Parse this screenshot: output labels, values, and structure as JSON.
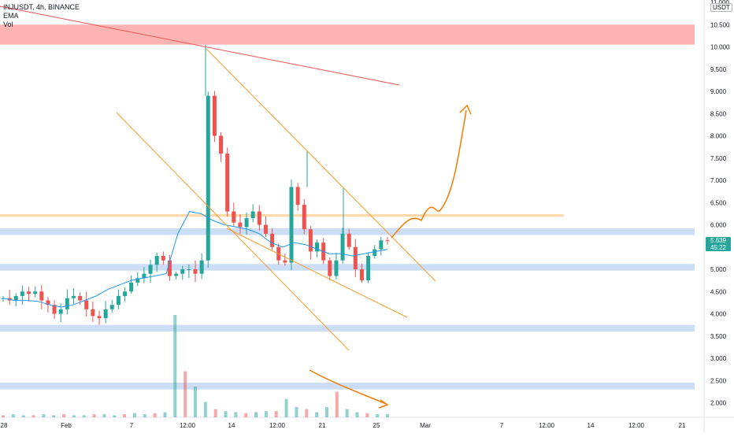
{
  "header": {
    "symbol_line": "INJUSDT, 4h, BINANCE",
    "indicators": [
      "EMA",
      "Vol"
    ],
    "currency": "USDT"
  },
  "last_price": {
    "value": "5.639",
    "countdown": "45:22"
  },
  "chart_data": {
    "type": "candlestick",
    "title": "",
    "xlabel": "",
    "ylabel": "",
    "ylim": [
      1.5,
      11.0
    ],
    "price_ticks": [
      "11.000",
      "10.500",
      "10.000",
      "9.500",
      "9.000",
      "8.500",
      "8.000",
      "7.500",
      "7.000",
      "6.500",
      "6.000",
      "5.500",
      "5.000",
      "4.500",
      "4.000",
      "3.500",
      "3.000",
      "2.500",
      "2.000"
    ],
    "time_ticks": [
      "28",
      "Feb",
      "7",
      "12:00",
      "14",
      "12:00",
      "21",
      "25",
      "Mar",
      "7",
      "12:00",
      "14",
      "12:00",
      "21"
    ],
    "ohlc_series_approx": [
      4.35,
      4.3,
      4.4,
      4.5,
      4.45,
      4.5,
      4.3,
      4.2,
      4.0,
      4.1,
      4.35,
      4.4,
      4.3,
      4.1,
      3.95,
      3.9,
      4.1,
      4.2,
      4.4,
      4.5,
      4.7,
      4.8,
      4.9,
      5.1,
      5.3,
      5.2,
      4.85,
      4.9,
      5.0,
      5.0,
      4.9,
      5.2,
      8.9,
      8.0,
      7.6,
      6.3,
      6.05,
      5.95,
      6.15,
      6.3,
      6.0,
      5.8,
      5.5,
      5.2,
      5.15,
      6.85,
      6.45,
      5.9,
      5.4,
      5.6,
      5.2,
      4.85,
      5.2,
      5.8,
      5.5,
      5.0,
      4.75,
      5.3,
      5.45,
      5.65,
      5.64
    ],
    "ema_series_approx": [
      4.35,
      4.3,
      4.3,
      4.28,
      4.2,
      4.15,
      4.2,
      4.3,
      4.4,
      4.55,
      4.65,
      4.75,
      4.8,
      4.85,
      4.9,
      5.8,
      6.3,
      6.25,
      6.1,
      6.0,
      5.95,
      5.9,
      5.8,
      5.6,
      5.5,
      5.6,
      5.55,
      5.45,
      5.35,
      5.35,
      5.3,
      5.35,
      5.4,
      5.45
    ],
    "volume_series_approx": [
      0.02,
      0.03,
      0.02,
      0.02,
      0.03,
      0.02,
      0.03,
      0.02,
      0.02,
      0.03,
      0.03,
      0.02,
      0.03,
      0.04,
      0.03,
      0.04,
      0.05,
      1.0,
      0.45,
      0.3,
      0.15,
      0.08,
      0.06,
      0.05,
      0.04,
      0.05,
      0.06,
      0.06,
      0.18,
      0.1,
      0.08,
      0.05,
      0.1,
      0.25,
      0.08,
      0.05,
      0.04,
      0.03,
      0.03
    ],
    "horizontal_zones": [
      {
        "low": 10.05,
        "high": 10.5,
        "color": "#ff9b9b"
      },
      {
        "low": 6.18,
        "high": 6.24,
        "color": "#ffd8a8"
      },
      {
        "low": 5.77,
        "high": 5.92,
        "color": "#c8dcf5"
      },
      {
        "low": 4.97,
        "high": 5.12,
        "color": "#c8dcf5"
      },
      {
        "low": 3.6,
        "high": 3.75,
        "color": "#c8dcf5"
      },
      {
        "low": 2.3,
        "high": 2.45,
        "color": "#c8dcf5"
      }
    ],
    "colors": {
      "up": "#26a69a",
      "down": "#ef5350",
      "ema": "#2196f3",
      "trend_orange": "#f59d2a",
      "trend_red": "#ef5350",
      "forecast": "#f57c00"
    }
  }
}
